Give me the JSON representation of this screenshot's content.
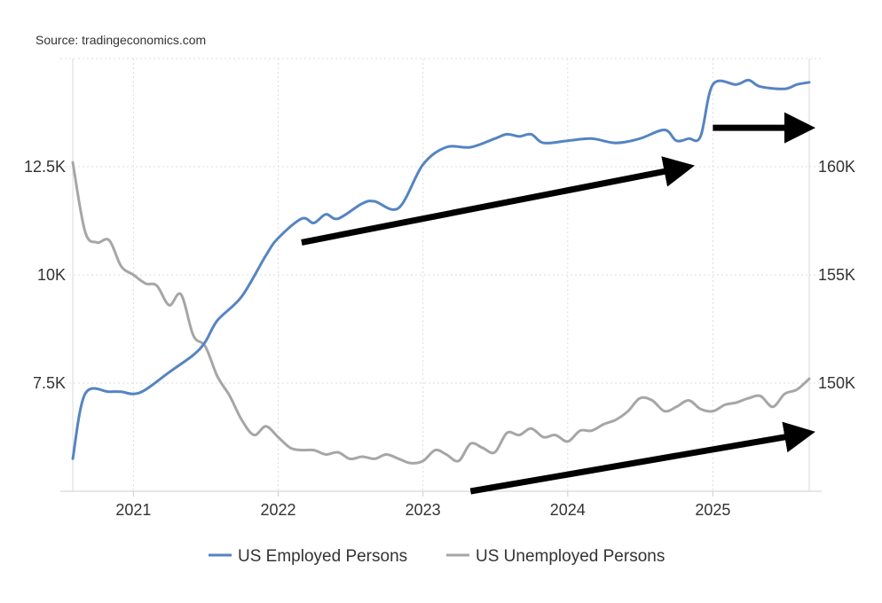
{
  "source": "Source: tradingeconomics.com",
  "chart_data": {
    "type": "line",
    "x_ticks": [
      "2021",
      "2022",
      "2023",
      "2024",
      "2025"
    ],
    "y_left": {
      "ticks": [
        "7.5K",
        "10K",
        "12.5K"
      ],
      "range": [
        5000,
        15000
      ]
    },
    "y_right": {
      "ticks": [
        "150K",
        "155K",
        "160K"
      ],
      "range": [
        145000,
        165000
      ]
    },
    "grid": true,
    "legend_position": "bottom",
    "colors": {
      "employed": "#5584c2",
      "unemployed": "#a6a6a6",
      "arrows": "#000000"
    },
    "series": [
      {
        "name": "US Employed Persons",
        "axis": "right",
        "color": "#5584c2",
        "points": [
          [
            "2020-08-01",
            146500
          ],
          [
            "2020-09-01",
            149500
          ],
          [
            "2020-11-01",
            149600
          ],
          [
            "2020-12-01",
            149600
          ],
          [
            "2021-01-01",
            149500
          ],
          [
            "2021-02-01",
            149700
          ],
          [
            "2021-04-01",
            150500
          ],
          [
            "2021-06-01",
            151300
          ],
          [
            "2021-07-01",
            151900
          ],
          [
            "2021-08-01",
            152900
          ],
          [
            "2021-10-01",
            154000
          ],
          [
            "2021-12-01",
            155900
          ],
          [
            "2022-01-01",
            156700
          ],
          [
            "2022-03-01",
            157600
          ],
          [
            "2022-04-01",
            157400
          ],
          [
            "2022-05-01",
            157800
          ],
          [
            "2022-06-01",
            157600
          ],
          [
            "2022-08-01",
            158300
          ],
          [
            "2022-09-01",
            158400
          ],
          [
            "2022-11-01",
            158100
          ],
          [
            "2023-01-01",
            160100
          ],
          [
            "2023-03-01",
            160900
          ],
          [
            "2023-05-01",
            160900
          ],
          [
            "2023-07-01",
            161300
          ],
          [
            "2023-08-01",
            161500
          ],
          [
            "2023-09-01",
            161400
          ],
          [
            "2023-10-01",
            161500
          ],
          [
            "2023-11-01",
            161100
          ],
          [
            "2024-01-01",
            161200
          ],
          [
            "2024-03-01",
            161300
          ],
          [
            "2024-05-01",
            161100
          ],
          [
            "2024-07-01",
            161300
          ],
          [
            "2024-09-01",
            161700
          ],
          [
            "2024-10-01",
            161200
          ],
          [
            "2024-11-01",
            161300
          ],
          [
            "2024-12-01",
            161400
          ],
          [
            "2025-01-01",
            163800
          ],
          [
            "2025-03-01",
            163800
          ],
          [
            "2025-04-01",
            164000
          ],
          [
            "2025-05-01",
            163700
          ],
          [
            "2025-07-01",
            163600
          ],
          [
            "2025-08-01",
            163800
          ],
          [
            "2025-09-01",
            163900
          ]
        ]
      },
      {
        "name": "US Unemployed Persons",
        "axis": "left",
        "color": "#a6a6a6",
        "points": [
          [
            "2020-08-01",
            12600
          ],
          [
            "2020-09-01",
            11000
          ],
          [
            "2020-10-01",
            10750
          ],
          [
            "2020-11-01",
            10800
          ],
          [
            "2020-12-01",
            10200
          ],
          [
            "2021-01-01",
            10000
          ],
          [
            "2021-02-01",
            9800
          ],
          [
            "2021-03-01",
            9750
          ],
          [
            "2021-04-01",
            9300
          ],
          [
            "2021-05-01",
            9550
          ],
          [
            "2021-06-01",
            8600
          ],
          [
            "2021-07-01",
            8350
          ],
          [
            "2021-08-01",
            7650
          ],
          [
            "2021-09-01",
            7200
          ],
          [
            "2021-10-01",
            6650
          ],
          [
            "2021-11-01",
            6300
          ],
          [
            "2021-12-01",
            6500
          ],
          [
            "2022-01-01",
            6250
          ],
          [
            "2022-02-01",
            6000
          ],
          [
            "2022-03-01",
            5950
          ],
          [
            "2022-04-01",
            5950
          ],
          [
            "2022-05-01",
            5850
          ],
          [
            "2022-06-01",
            5900
          ],
          [
            "2022-07-01",
            5750
          ],
          [
            "2022-08-01",
            5800
          ],
          [
            "2022-09-01",
            5750
          ],
          [
            "2022-10-01",
            5850
          ],
          [
            "2022-11-01",
            5750
          ],
          [
            "2022-12-01",
            5650
          ],
          [
            "2023-01-01",
            5700
          ],
          [
            "2023-02-01",
            5950
          ],
          [
            "2023-03-01",
            5850
          ],
          [
            "2023-04-01",
            5700
          ],
          [
            "2023-05-01",
            6100
          ],
          [
            "2023-06-01",
            6000
          ],
          [
            "2023-07-01",
            5900
          ],
          [
            "2023-08-01",
            6350
          ],
          [
            "2023-09-01",
            6300
          ],
          [
            "2023-10-01",
            6450
          ],
          [
            "2023-11-01",
            6250
          ],
          [
            "2023-12-01",
            6300
          ],
          [
            "2024-01-01",
            6150
          ],
          [
            "2024-02-01",
            6400
          ],
          [
            "2024-03-01",
            6400
          ],
          [
            "2024-04-01",
            6550
          ],
          [
            "2024-05-01",
            6650
          ],
          [
            "2024-06-01",
            6850
          ],
          [
            "2024-07-01",
            7150
          ],
          [
            "2024-08-01",
            7100
          ],
          [
            "2024-09-01",
            6850
          ],
          [
            "2024-10-01",
            6950
          ],
          [
            "2024-11-01",
            7100
          ],
          [
            "2024-12-01",
            6900
          ],
          [
            "2025-01-01",
            6850
          ],
          [
            "2025-02-01",
            7000
          ],
          [
            "2025-03-01",
            7050
          ],
          [
            "2025-04-01",
            7150
          ],
          [
            "2025-05-01",
            7200
          ],
          [
            "2025-06-01",
            6950
          ],
          [
            "2025-07-01",
            7250
          ],
          [
            "2025-08-01",
            7350
          ],
          [
            "2025-09-01",
            7600
          ]
        ]
      }
    ],
    "annotations": [
      {
        "type": "arrow",
        "from": [
          "2022-03-01",
          156500
        ],
        "to": [
          "2024-11-01",
          160000
        ]
      },
      {
        "type": "arrow",
        "from": [
          "2025-01-01",
          161800
        ],
        "to": [
          "2025-09-01",
          161800
        ]
      },
      {
        "type": "arrow",
        "from": [
          "2023-05-01",
          145000
        ],
        "to": [
          "2025-09-01",
          147700
        ]
      }
    ]
  }
}
